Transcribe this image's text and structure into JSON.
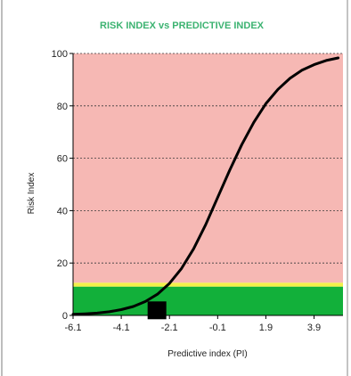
{
  "window": {
    "background": "#ffffff",
    "border_color": "#bdbdbd"
  },
  "chart_data": {
    "type": "line",
    "title": "RISK INDEX vs PREDICTIVE INDEX",
    "xlabel": "Predictive index (PI)",
    "ylabel": "Risk Index",
    "xlim": [
      -6.1,
      5.1
    ],
    "ylim": [
      0,
      100
    ],
    "x_tick_labels": [
      "-6.1",
      "-4.1",
      "-2.1",
      "-0.1",
      "1.9",
      "3.9"
    ],
    "x_tick_values": [
      -6.1,
      -4.1,
      -2.1,
      -0.1,
      1.9,
      3.9
    ],
    "y_tick_labels": [
      "0",
      "20",
      "40",
      "60",
      "80",
      "100"
    ],
    "y_tick_values": [
      0,
      20,
      40,
      60,
      80,
      100
    ],
    "grid": true,
    "zones": [
      {
        "from": 0,
        "to": 11,
        "color": "#12b03a"
      },
      {
        "from": 11,
        "to": 12.5,
        "color": "#f2f04a"
      },
      {
        "from": 12.5,
        "to": 100,
        "color": "#f6b8b4"
      }
    ],
    "series": [
      {
        "color": "#000000",
        "x": [
          -6.1,
          -5.6,
          -5.1,
          -4.6,
          -4.1,
          -3.6,
          -3.1,
          -2.6,
          -2.1,
          -1.6,
          -1.1,
          -0.6,
          -0.1,
          0.4,
          0.9,
          1.4,
          1.9,
          2.4,
          2.9,
          3.4,
          3.9,
          4.4,
          4.9
        ],
        "values": [
          0.4,
          0.6,
          0.9,
          1.4,
          2.2,
          3.4,
          5.3,
          8.1,
          12.2,
          17.9,
          25.4,
          34.6,
          45.0,
          55.4,
          65.2,
          73.7,
          80.8,
          86.3,
          90.5,
          93.6,
          95.7,
          97.3,
          98.3
        ]
      }
    ],
    "marker": {
      "x": -2.6,
      "y": 1.6,
      "shape": "square",
      "color": "#000000"
    }
  }
}
